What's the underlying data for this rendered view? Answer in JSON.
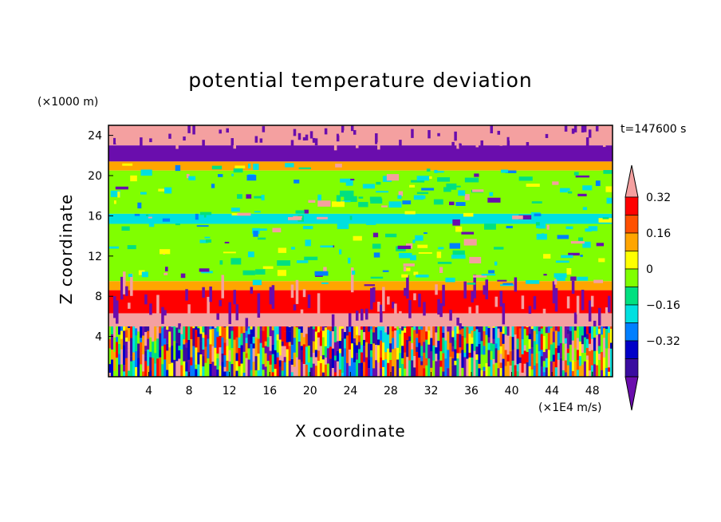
{
  "chart_data": {
    "type": "heatmap",
    "title": "potential temperature deviation",
    "xlabel": "X coordinate",
    "ylabel": "Z coordinate",
    "x_unit": "(×1E4 m/s)",
    "y_unit": "(×1000 m)",
    "time_label": "t=147600 s",
    "xlim": [
      0,
      50
    ],
    "ylim": [
      0,
      25
    ],
    "x_ticks": [
      4,
      8,
      12,
      16,
      20,
      24,
      28,
      32,
      36,
      40,
      44,
      48
    ],
    "y_ticks": [
      4,
      8,
      12,
      16,
      20,
      24
    ],
    "colorbar": {
      "levels": [
        -0.4,
        -0.32,
        -0.24,
        -0.16,
        -0.08,
        0,
        0.08,
        0.16,
        0.24,
        0.32,
        0.4
      ],
      "tick_labels": [
        "0.32",
        "0.16",
        "0",
        "−0.16",
        "−0.32"
      ],
      "tick_values": [
        0.32,
        0.16,
        0,
        -0.16,
        -0.32
      ],
      "colors": [
        "#6a0dad",
        "#3a0ca0",
        "#0000c8",
        "#007fff",
        "#00e0e0",
        "#00e080",
        "#80ff00",
        "#ffff00",
        "#ffa500",
        "#ff5000",
        "#ff0000",
        "#f4a0a0"
      ],
      "extends": "both"
    },
    "bands": [
      {
        "z": [
          23.0,
          25.0
        ],
        "value": 0.45,
        "note": "top stratosphere pink/purple"
      },
      {
        "z": [
          21.4,
          23.0
        ],
        "value": -0.45
      },
      {
        "z": [
          20.5,
          21.4
        ],
        "value": 0.2
      },
      {
        "z": [
          16.2,
          20.5
        ],
        "value": 0.06
      },
      {
        "z": [
          15.2,
          16.2
        ],
        "value": -0.1
      },
      {
        "z": [
          9.5,
          15.2
        ],
        "value": 0.06
      },
      {
        "z": [
          8.6,
          9.5
        ],
        "value": 0.18
      },
      {
        "z": [
          6.3,
          8.6
        ],
        "value": 0.35
      },
      {
        "z": [
          5.0,
          6.3
        ],
        "value": 0.45
      },
      {
        "z": [
          0.0,
          5.0
        ],
        "value": 0.0,
        "note": "turbulent boundary layer, mixed values"
      }
    ]
  }
}
